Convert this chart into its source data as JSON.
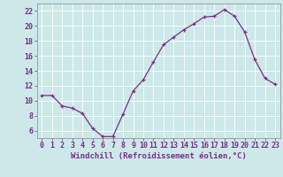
{
  "x": [
    0,
    1,
    2,
    3,
    4,
    5,
    6,
    7,
    8,
    9,
    10,
    11,
    12,
    13,
    14,
    15,
    16,
    17,
    18,
    19,
    20,
    21,
    22,
    23
  ],
  "y": [
    10.7,
    10.7,
    9.3,
    9.0,
    8.3,
    6.3,
    5.2,
    5.2,
    8.2,
    11.3,
    12.8,
    15.2,
    17.5,
    18.5,
    19.5,
    20.3,
    21.2,
    21.3,
    22.2,
    21.3,
    19.2,
    15.5,
    13.0,
    12.2
  ],
  "line_color": "#7b2d8b",
  "marker": "+",
  "bg_color": "#cce8e8",
  "grid_color": "#b0d8d8",
  "xlabel": "Windchill (Refroidissement éolien,°C)",
  "xlim": [
    -0.5,
    23.5
  ],
  "ylim": [
    5.0,
    23.0
  ],
  "xticks": [
    0,
    1,
    2,
    3,
    4,
    5,
    6,
    7,
    8,
    9,
    10,
    11,
    12,
    13,
    14,
    15,
    16,
    17,
    18,
    19,
    20,
    21,
    22,
    23
  ],
  "yticks": [
    6,
    8,
    10,
    12,
    14,
    16,
    18,
    20,
    22
  ],
  "tick_color": "#7b2d8b",
  "label_fontsize": 6.5,
  "tick_fontsize": 6.0,
  "axis_color": "#888888"
}
